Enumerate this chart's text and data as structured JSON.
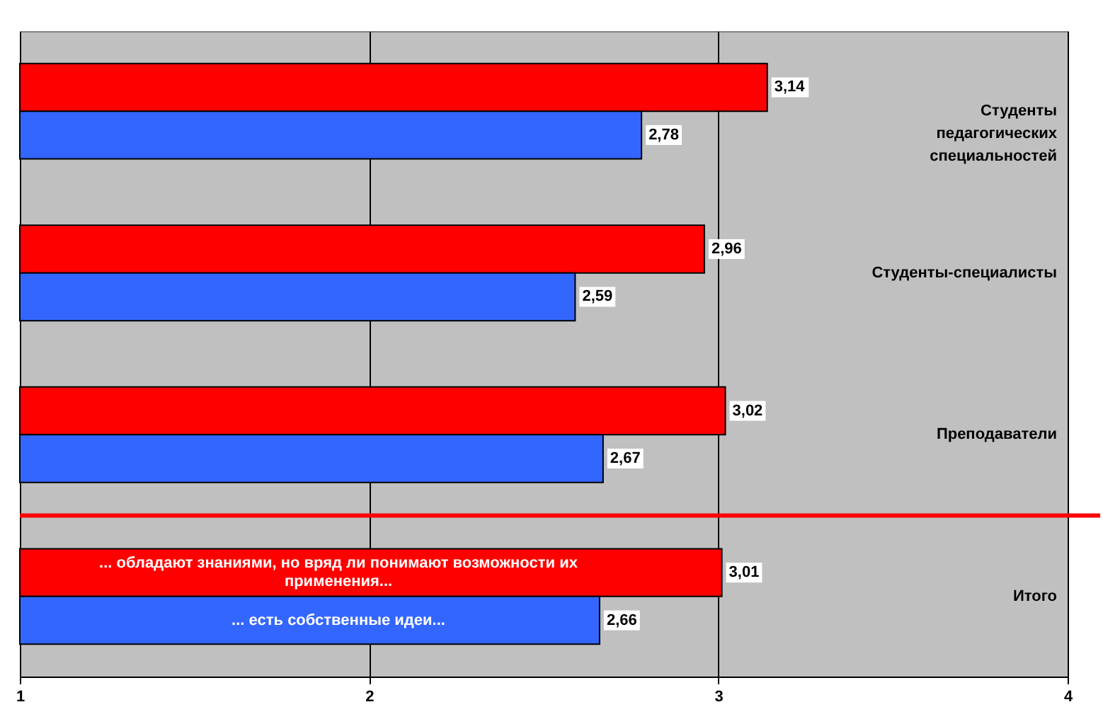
{
  "chart_data": {
    "type": "bar",
    "orientation": "horizontal",
    "categories": [
      "Студенты педагогических специальностей",
      "Студенты-специалисты",
      "Преподаватели",
      "Итого"
    ],
    "series": [
      {
        "name": "... обладают знаниями, но вряд ли понимают возможности их применения...",
        "color": "#ff0000",
        "values": [
          3.14,
          2.96,
          3.02,
          3.01
        ],
        "value_labels": [
          "3,14",
          "2,96",
          "3,02",
          "3,01"
        ]
      },
      {
        "name": "... есть собственные идеи...",
        "color": "#3366ff",
        "values": [
          2.78,
          2.59,
          2.67,
          2.66
        ],
        "value_labels": [
          "2,78",
          "2,59",
          "2,67",
          "2,66"
        ]
      }
    ],
    "xlim": [
      1,
      4
    ],
    "xticks": [
      1,
      2,
      3,
      4
    ],
    "grid": "x",
    "ref_lines": [
      {
        "axis": "y",
        "value": "Итого",
        "color": "#ff0000"
      }
    ]
  }
}
